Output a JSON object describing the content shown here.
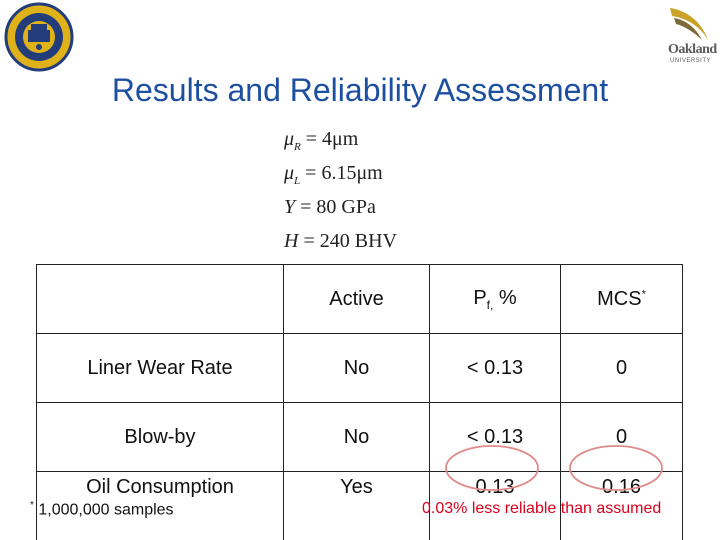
{
  "title": "Results and Reliability Assessment",
  "equations": {
    "mu_r": {
      "symbol": "μ",
      "sub": "R",
      "rhs": " = 4μm"
    },
    "mu_l": {
      "symbol": "μ",
      "sub": "L",
      "rhs": " = 6.15μm"
    },
    "y": {
      "symbol": "Y",
      "rhs": " = 80 GPa"
    },
    "h": {
      "symbol": "H",
      "rhs": " = 240 BHV"
    }
  },
  "table": {
    "headers": {
      "col1": "Active",
      "col2_main": "P",
      "col2_sub": "f,",
      "col2_tail": " %",
      "col3_main": "MCS",
      "col3_sup": "*"
    },
    "rows": [
      {
        "name": "Liner Wear Rate",
        "active": "No",
        "pf": "< 0.13",
        "mcs": "0"
      },
      {
        "name": "Blow-by",
        "active": "No",
        "pf": "< 0.13",
        "mcs": "0"
      },
      {
        "name": "Oil Consumption",
        "active": "Yes",
        "pf": "0.13",
        "mcs": "0.16"
      }
    ]
  },
  "footnote": {
    "star": "*",
    "text": " 1,000,000 samples"
  },
  "callout": "0.03% less reliable than assumed",
  "logos": {
    "right_name": "Oakland",
    "right_sub": "UNIVERSITY"
  },
  "colors": {
    "title": "#1d4fa0",
    "callout": "#d8001c",
    "ellipse": "#e08a8a",
    "seal": "#223d7a",
    "seal_gold": "#e0b21a"
  }
}
